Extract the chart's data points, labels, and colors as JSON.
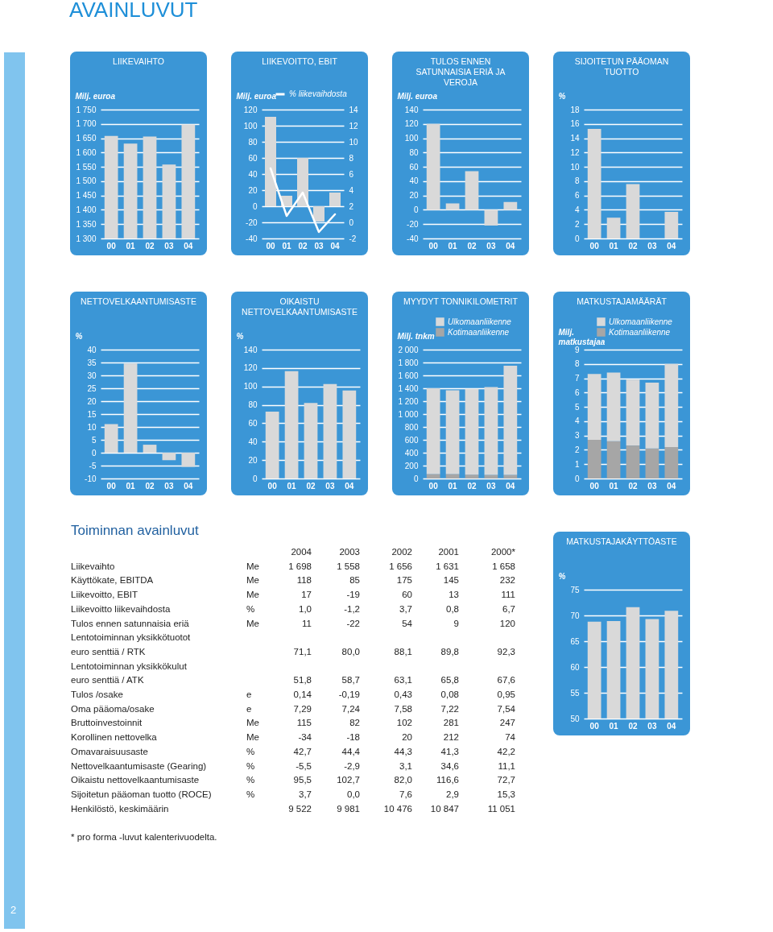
{
  "chart_data": [
    {
      "type": "other",
      "title": "AVAINLUVUT",
      "annotations": [
        "2"
      ]
    },
    {
      "type": "bar",
      "title": "LIIKEVAIHTO",
      "ylabel": "Milj. euroa",
      "categories": [
        "00",
        "01",
        "02",
        "03",
        "04"
      ],
      "values": [
        1658,
        1631,
        1656,
        1558,
        1698
      ],
      "color": "#d9d9d9",
      "ylim": [
        1300,
        1750
      ],
      "yticks": [
        {
          "value": 1300,
          "label": "1 300"
        },
        {
          "value": 1350,
          "label": "1 350"
        },
        {
          "value": 1400,
          "label": "1 400"
        },
        {
          "value": 1450,
          "label": "1 450"
        },
        {
          "value": 1500,
          "label": "1 500"
        },
        {
          "value": 1550,
          "label": "1 550"
        },
        {
          "value": 1600,
          "label": "1 600"
        },
        {
          "value": 1650,
          "label": "1 650"
        },
        {
          "value": 1700,
          "label": "1 700"
        },
        {
          "value": 1750,
          "label": "1 750"
        }
      ],
      "grid": "y"
    },
    {
      "type": "bar",
      "title": "LIIKEVOITTO, EBIT",
      "ylabel": "Milj. euroa",
      "categories": [
        "00",
        "01",
        "02",
        "03",
        "04"
      ],
      "series": [
        {
          "type": "bar",
          "color": "#d9d9d9",
          "values": [
            111,
            13,
            60,
            -19,
            17
          ]
        },
        {
          "type": "line",
          "name": "% liikevaihdosta",
          "color": "#ffffff",
          "axis": "y2",
          "values": [
            6.7,
            0.8,
            3.7,
            -1.2,
            1.0
          ]
        }
      ],
      "ylim": [
        -40,
        120
      ],
      "yticks": [
        -40,
        -20,
        0,
        20,
        40,
        60,
        80,
        100,
        120
      ],
      "y2lim": [
        -2,
        14
      ],
      "y2ticks": [
        -2,
        0,
        2,
        4,
        6,
        8,
        10,
        12,
        14
      ],
      "grid": "y",
      "legend": "top right"
    },
    {
      "type": "bar",
      "title": "TULOS ENNEN SATUNNAISIA ERIÄ JA VEROJA",
      "ylabel": "Milj. euroa",
      "categories": [
        "00",
        "01",
        "02",
        "03",
        "04"
      ],
      "values": [
        120,
        9,
        54,
        -22,
        11
      ],
      "color": "#d9d9d9",
      "ylim": [
        -40,
        140
      ],
      "yticks": [
        -40,
        -20,
        0,
        20,
        40,
        60,
        80,
        100,
        120,
        140
      ],
      "grid": "y"
    },
    {
      "type": "bar",
      "title": "SIJOITETUN PÄÄOMAN TUOTTO",
      "ylabel": "%",
      "categories": [
        "00",
        "01",
        "02",
        "03",
        "04"
      ],
      "values": [
        15.3,
        2.9,
        7.6,
        0.0,
        3.7
      ],
      "color": "#d9d9d9",
      "ylim": [
        0,
        18
      ],
      "yticks": [
        0,
        2,
        4,
        6,
        8,
        10,
        12,
        14,
        16,
        18
      ],
      "grid": "y"
    },
    {
      "type": "bar",
      "title": "NETTOVELKAANTUMISASTE",
      "ylabel": "%",
      "categories": [
        "00",
        "01",
        "02",
        "03",
        "04"
      ],
      "values": [
        11.1,
        34.6,
        3.1,
        -2.9,
        -5.5
      ],
      "color": "#d9d9d9",
      "ylim": [
        -10,
        40
      ],
      "yticks": [
        -10,
        -5,
        0,
        5,
        10,
        15,
        20,
        25,
        30,
        35,
        40
      ],
      "grid": "y"
    },
    {
      "type": "bar",
      "title": "OIKAISTU NETTOVELKAANTUMISASTE",
      "ylabel": "%",
      "categories": [
        "00",
        "01",
        "02",
        "03",
        "04"
      ],
      "values": [
        72.7,
        116.6,
        82.0,
        102.7,
        95.5
      ],
      "color": "#d9d9d9",
      "ylim": [
        0,
        140
      ],
      "yticks": [
        0,
        20,
        40,
        60,
        80,
        100,
        120,
        140
      ],
      "grid": "y"
    },
    {
      "type": "bar",
      "title": "MYYDYT TONNIKILOMETRIT",
      "ylabel": "Milj. tnkm",
      "categories": [
        "00",
        "01",
        "02",
        "03",
        "04"
      ],
      "stacked": true,
      "series": [
        {
          "name": "Kotimaanliikenne",
          "color": "#a6a6a6",
          "values": [
            70,
            70,
            60,
            55,
            55
          ]
        },
        {
          "name": "Ulkomaanliikenne",
          "color": "#d9d9d9",
          "values": [
            1330,
            1300,
            1330,
            1365,
            1695
          ]
        }
      ],
      "ylim": [
        0,
        2000
      ],
      "yticks": [
        0,
        200,
        400,
        600,
        800,
        {
          "value": 1000,
          "label": "1 000"
        },
        {
          "value": 1200,
          "label": "1 200"
        },
        {
          "value": 1400,
          "label": "1 400"
        },
        {
          "value": 1600,
          "label": "1 600"
        },
        {
          "value": 1800,
          "label": "1 800"
        },
        {
          "value": 2000,
          "label": "2 000"
        }
      ],
      "grid": "y",
      "legend": "top right"
    },
    {
      "type": "bar",
      "title": "MATKUSTAJAMÄÄRÄT",
      "ylabel": "Milj. matkustajaa",
      "categories": [
        "00",
        "01",
        "02",
        "03",
        "04"
      ],
      "stacked": true,
      "series": [
        {
          "name": "Kotimaanliikenne",
          "color": "#a6a6a6",
          "values": [
            2.7,
            2.6,
            2.3,
            2.1,
            2.2
          ]
        },
        {
          "name": "Ulkomaanliikenne",
          "color": "#d9d9d9",
          "values": [
            4.6,
            4.8,
            4.6,
            4.6,
            5.8
          ]
        }
      ],
      "ylim": [
        0,
        9
      ],
      "yticks": [
        0,
        1,
        2,
        3,
        4,
        5,
        6,
        7,
        8,
        9
      ],
      "grid": "y",
      "legend": "top right"
    },
    {
      "type": "other",
      "title": "Toiminnan avainluvut",
      "categories": [
        "2004",
        "2003",
        "2002",
        "2001",
        "2000*"
      ],
      "y_categories": [
        "Liikevaihto",
        "Käyttökate, EBITDA",
        "Liikevoitto, EBIT",
        "Liikevoitto liikevaihdosta",
        "Tulos ennen satunnaisia eriä",
        "Lentotoiminnan yksikkötuotot",
        "euro senttiä / RTK",
        "Lentotoiminnan yksikkökulut",
        "euro senttiä / ATK",
        "Tulos /osake",
        "Oma pääoma/osake",
        "Bruttoinvestoinnit",
        "Korollinen nettovelka",
        "Omavaraisuusaste",
        "Nettovelkaantumisaste (Gearing)",
        "Oikaistu nettovelkaantumisaste",
        "Sijoitetun pääoman tuotto (ROCE)",
        "Henkilöstö, keskimäärin"
      ],
      "y2_categories": [
        "Me",
        "Me",
        "Me",
        "%",
        "Me",
        null,
        null,
        null,
        null,
        "e",
        "e",
        "Me",
        "Me",
        "%",
        "%",
        "%",
        "%",
        null
      ],
      "cell_labels": [
        [
          "1 698",
          "1 558",
          "1 656",
          "1 631",
          "1 658"
        ],
        [
          "118",
          "85",
          "175",
          "145",
          "232"
        ],
        [
          "17",
          "-19",
          "60",
          "13",
          "111"
        ],
        [
          "1,0",
          "-1,2",
          "3,7",
          "0,8",
          "6,7"
        ],
        [
          "11",
          "-22",
          "54",
          "9",
          "120"
        ],
        [
          null,
          null,
          null,
          null,
          null
        ],
        [
          "71,1",
          "80,0",
          "88,1",
          "89,8",
          "92,3"
        ],
        [
          null,
          null,
          null,
          null,
          null
        ],
        [
          "51,8",
          "58,7",
          "63,1",
          "65,8",
          "67,6"
        ],
        [
          "0,14",
          "-0,19",
          "0,43",
          "0,08",
          "0,95"
        ],
        [
          "7,29",
          "7,24",
          "7,58",
          "7,22",
          "7,54"
        ],
        [
          "115",
          "82",
          "102",
          "281",
          "247"
        ],
        [
          "-34",
          "-18",
          "20",
          "212",
          "74"
        ],
        [
          "42,7",
          "44,4",
          "44,3",
          "41,3",
          "42,2"
        ],
        [
          "-5,5",
          "-2,9",
          "3,1",
          "34,6",
          "11,1"
        ],
        [
          "95,5",
          "102,7",
          "82,0",
          "116,6",
          "72,7"
        ],
        [
          "3,7",
          "0,0",
          "7,6",
          "2,9",
          "15,3"
        ],
        [
          "9 522",
          "9 981",
          "10 476",
          "10 847",
          "11 051"
        ]
      ],
      "annotations": [
        "* pro forma -luvut kalenterivuodelta."
      ]
    },
    {
      "type": "bar",
      "title": "MATKUSTAJAKÄYTTÖASTE",
      "ylabel": "%",
      "categories": [
        "00",
        "01",
        "02",
        "03",
        "04"
      ],
      "values": [
        68.8,
        68.9,
        71.6,
        69.3,
        70.9
      ],
      "color": "#d9d9d9",
      "ylim": [
        50,
        75
      ],
      "yticks": [
        50,
        55,
        60,
        65,
        70,
        75
      ],
      "grid": "y"
    }
  ]
}
